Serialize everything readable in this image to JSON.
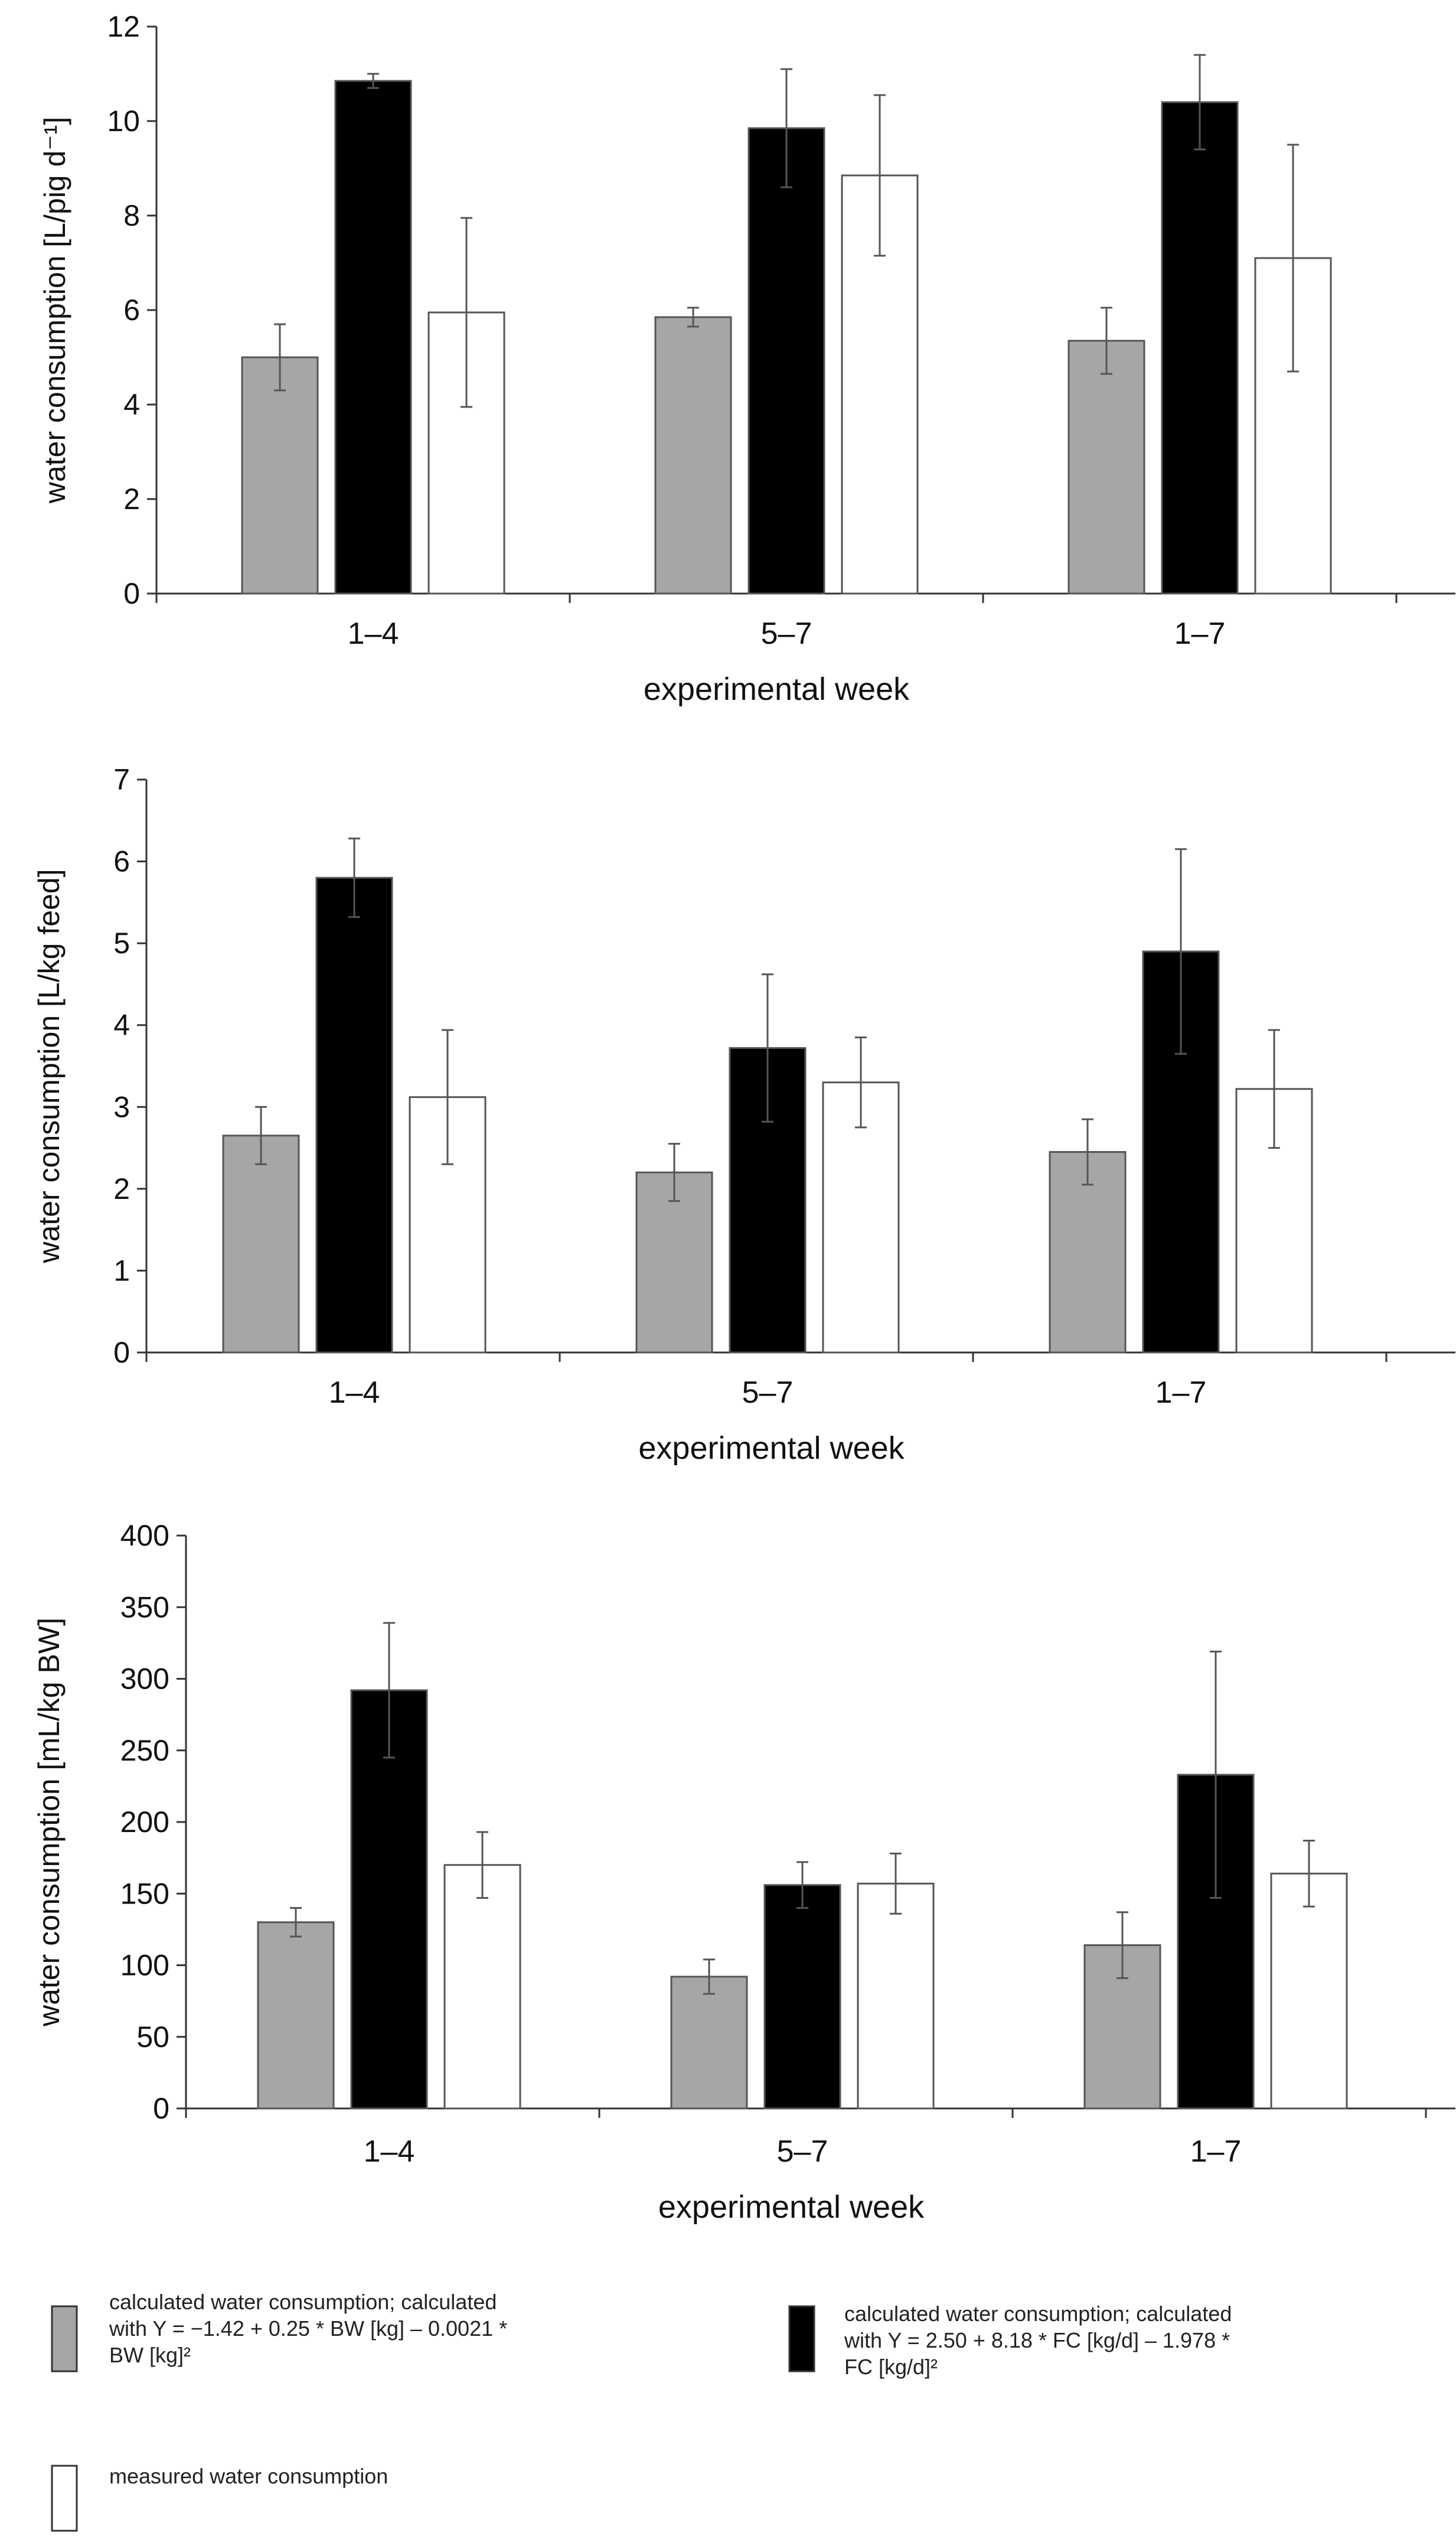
{
  "chart_data": [
    {
      "type": "bar",
      "title": "",
      "xlabel": "experimental week",
      "ylabel": "water consumption [L/pig d⁻¹]",
      "ylim": [
        0,
        12
      ],
      "yticks": [
        0,
        2,
        4,
        6,
        8,
        10,
        12
      ],
      "categories": [
        "1–4",
        "5–7",
        "1–7"
      ],
      "series": [
        {
          "name": "calculated water consumption (BW)",
          "color": "#a6a6a6",
          "values": [
            5.0,
            5.85,
            5.35
          ],
          "errors": [
            0.7,
            0.2,
            0.7
          ]
        },
        {
          "name": "calculated water consumption (FC)",
          "color": "#000000",
          "values": [
            10.85,
            9.85,
            10.4
          ],
          "errors": [
            0.15,
            1.25,
            1.0
          ]
        },
        {
          "name": "measured water consumption",
          "color": "#ffffff",
          "values": [
            5.95,
            8.85,
            7.1
          ],
          "errors": [
            2.0,
            1.7,
            2.4
          ]
        }
      ]
    },
    {
      "type": "bar",
      "title": "",
      "xlabel": "experimental week",
      "ylabel": "water consumption [L/kg feed]",
      "ylim": [
        0,
        7
      ],
      "yticks": [
        0,
        1,
        2,
        3,
        4,
        5,
        6,
        7
      ],
      "categories": [
        "1–4",
        "5–7",
        "1–7"
      ],
      "series": [
        {
          "name": "calculated water consumption (BW)",
          "color": "#a6a6a6",
          "values": [
            2.65,
            2.2,
            2.45
          ],
          "errors": [
            0.35,
            0.35,
            0.4
          ]
        },
        {
          "name": "calculated water consumption (FC)",
          "color": "#000000",
          "values": [
            5.8,
            3.72,
            4.9
          ],
          "errors": [
            0.48,
            0.9,
            1.25
          ]
        },
        {
          "name": "measured water consumption",
          "color": "#ffffff",
          "values": [
            3.12,
            3.3,
            3.22
          ],
          "errors": [
            0.82,
            0.55,
            0.72
          ]
        }
      ]
    },
    {
      "type": "bar",
      "title": "",
      "xlabel": "experimental week",
      "ylabel": "water consumption [mL/kg BW]",
      "ylim": [
        0,
        400
      ],
      "yticks": [
        0,
        50,
        100,
        150,
        200,
        250,
        300,
        350,
        400
      ],
      "categories": [
        "1–4",
        "5–7",
        "1–7"
      ],
      "series": [
        {
          "name": "calculated water consumption (BW)",
          "color": "#a6a6a6",
          "values": [
            130,
            92,
            114
          ],
          "errors": [
            10,
            12,
            23
          ]
        },
        {
          "name": "calculated water consumption (FC)",
          "color": "#000000",
          "values": [
            292,
            156,
            233
          ],
          "errors": [
            47,
            16,
            86
          ]
        },
        {
          "name": "measured water consumption",
          "color": "#ffffff",
          "values": [
            170,
            157,
            164
          ],
          "errors": [
            23,
            21,
            23
          ]
        }
      ]
    }
  ],
  "legend": {
    "items": [
      {
        "color": "#a6a6a6",
        "lines": [
          "calculated water consumption; calculated",
          "with Y = −1.42 + 0.25 * BW [kg] – 0.0021 *",
          "BW [kg]²"
        ]
      },
      {
        "color": "#000000",
        "lines": [
          "calculated water consumption; calculated",
          "with Y = 2.50 + 8.18 * FC [kg/d] – 1.978 *",
          "FC [kg/d]²"
        ]
      },
      {
        "color": "#ffffff",
        "lines": [
          "measured water consumption"
        ]
      }
    ]
  }
}
